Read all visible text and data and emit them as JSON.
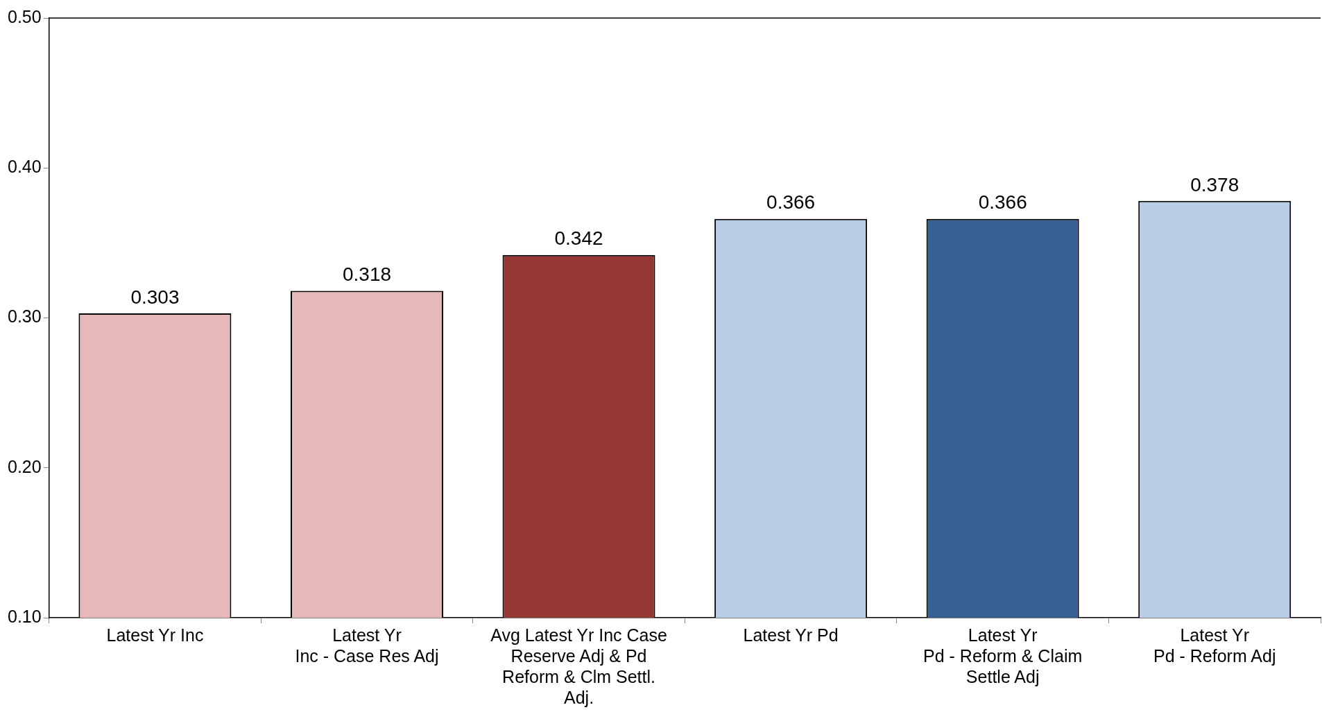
{
  "chart_data": {
    "type": "bar",
    "categories": [
      "Latest Yr Inc",
      "Latest Yr\nInc - Case Res Adj",
      "Avg Latest Yr Inc Case Reserve Adj & Pd Reform & Clm Settl. Adj.",
      "Latest Yr Pd",
      "Latest Yr\nPd - Reform & Claim Settle Adj",
      "Latest Yr\nPd - Reform Adj"
    ],
    "values": [
      0.303,
      0.318,
      0.342,
      0.366,
      0.366,
      0.378
    ],
    "colors": [
      "#e6b8b7",
      "#e6b8b7",
      "#953735",
      "#b9cde5",
      "#366092",
      "#b9cde5"
    ],
    "ylim": [
      0.1,
      0.5
    ],
    "yticks": [
      {
        "value": 0.1,
        "label": "0.10"
      },
      {
        "value": 0.2,
        "label": "0.20"
      },
      {
        "value": 0.3,
        "label": "0.30"
      },
      {
        "value": 0.4,
        "label": "0.40"
      },
      {
        "value": 0.5,
        "label": "0.50"
      }
    ],
    "data_labels": true,
    "grid": false,
    "legend": false
  }
}
